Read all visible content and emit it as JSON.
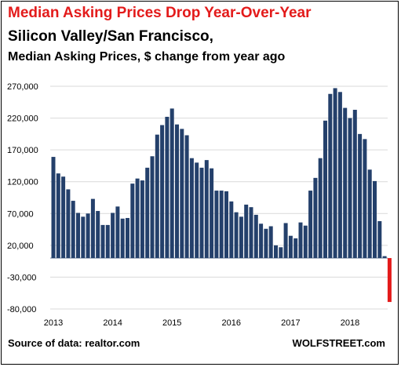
{
  "chart_data": {
    "type": "bar",
    "title": "Median Asking Prices Drop Year-Over-Year",
    "subtitle": "Silicon Valley/San  Francisco,",
    "subtitle2": "Median Asking Prices, $ change from year ago",
    "source": "Source of data: realtor.com",
    "brand": "WOLFSTREET.com",
    "ylim": [
      -80000,
      290000
    ],
    "yticks": [
      -80000,
      -30000,
      20000,
      70000,
      120000,
      170000,
      220000,
      270000
    ],
    "ytick_labels": [
      "-80,000",
      "-30,000",
      "20,000",
      "70,000",
      "120,000",
      "170,000",
      "220,000",
      "270,000"
    ],
    "xtick_labels": [
      "2013",
      "2014",
      "2015",
      "2016",
      "2017",
      "2018"
    ],
    "grid": true,
    "colors": {
      "bar": "#24406b",
      "negative": "#e31b1b",
      "title": "#e31b1b"
    },
    "series": [
      {
        "values": [
          159000,
          133000,
          128000,
          108000,
          90000,
          71000,
          65000,
          70000,
          93000,
          74000,
          52000,
          52000,
          71000,
          81000,
          62000,
          63000,
          117000,
          125000,
          122000,
          142000,
          160000,
          194000,
          209000,
          222000,
          235000,
          210000,
          203000,
          193000,
          157000,
          150000,
          142000,
          154000,
          141000,
          106000,
          106000,
          105000,
          89000,
          72000,
          65000,
          84000,
          80000,
          68000,
          54000,
          46000,
          50000,
          20000,
          17000,
          55000,
          35000,
          31000,
          56000,
          51000,
          106000,
          126000,
          157000,
          216000,
          258000,
          267000,
          261000,
          236000,
          220000,
          233000,
          195000,
          187000,
          139000,
          121000,
          58000,
          3000,
          -69000
        ]
      }
    ]
  }
}
